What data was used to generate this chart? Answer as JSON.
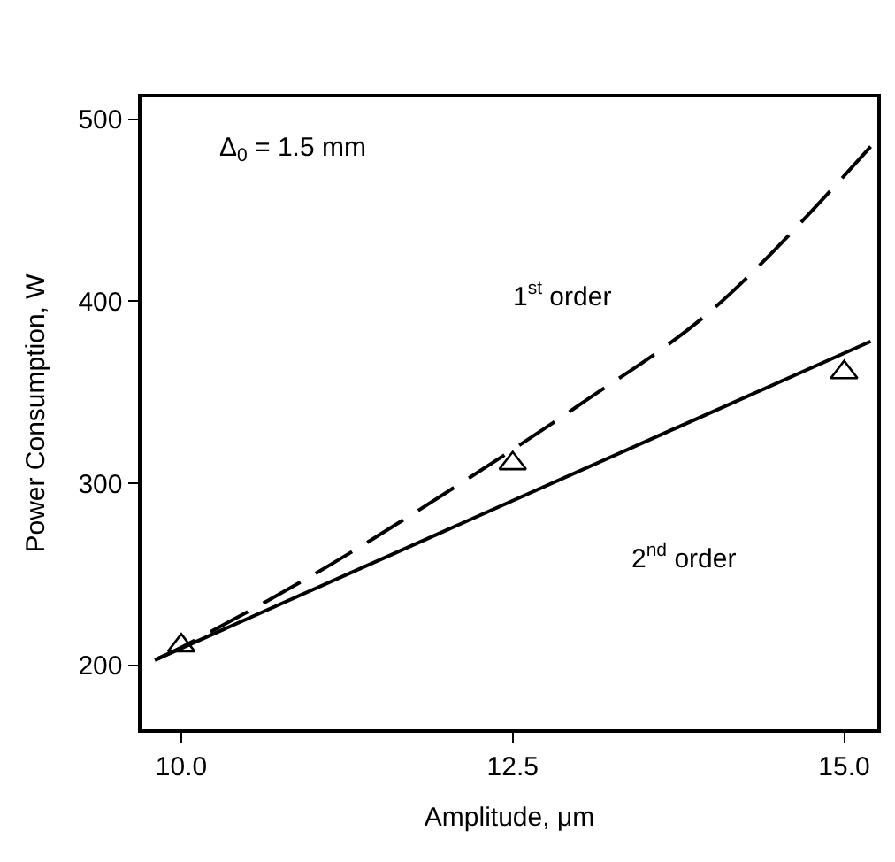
{
  "chart_data": {
    "type": "line",
    "xlabel": "Amplitude, μm",
    "ylabel": "Power Consumption, W",
    "xlim": [
      9.7,
      15.25
    ],
    "ylim": [
      165,
      512
    ],
    "xticks": [
      {
        "value": 10,
        "label": "10.0"
      },
      {
        "value": 12.5,
        "label": "12.5"
      },
      {
        "value": 15,
        "label": "15.0"
      }
    ],
    "yticks": [
      200,
      300,
      400,
      500
    ],
    "series": [
      {
        "color": "#000000",
        "line_style": "dashed",
        "marker": "none",
        "x": [
          9.8,
          10,
          11,
          12,
          13,
          14,
          15.2
        ],
        "values": [
          203,
          210,
          250,
          295,
          343,
          395,
          485
        ]
      },
      {
        "color": "#000000",
        "line_style": "solid",
        "marker": "none",
        "x": [
          9.8,
          15.2
        ],
        "values": [
          203,
          378
        ]
      },
      {
        "type": "scatter",
        "color": "#000000",
        "marker": "triangle",
        "x": [
          10,
          12.5,
          15
        ],
        "values": [
          211,
          311,
          361
        ]
      }
    ],
    "annotations": [
      "Δ$_{0}$ = 1.5 mm",
      "1$^{st}$ order",
      "2$^{nd}$ order"
    ]
  }
}
